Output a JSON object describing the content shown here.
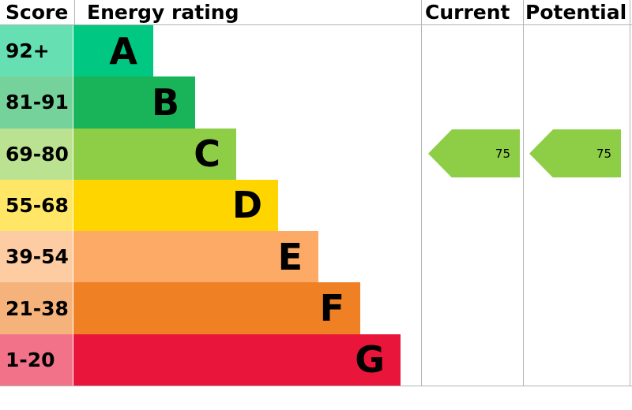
{
  "header": {
    "score": "Score",
    "energy_rating": "Energy rating",
    "current": "Current",
    "potential": "Potential"
  },
  "chart_data": {
    "type": "bar",
    "subtype": "epc-energy-efficiency-rating",
    "title": "Energy rating",
    "columns": [
      "Score",
      "Energy rating",
      "Current",
      "Potential"
    ],
    "bands": [
      {
        "letter": "A",
        "score_range": "92+",
        "bar_color": "#00c781",
        "score_cell_color": "#66e0b3"
      },
      {
        "letter": "B",
        "score_range": "81-91",
        "bar_color": "#19b459",
        "score_cell_color": "#75d29b"
      },
      {
        "letter": "C",
        "score_range": "69-80",
        "bar_color": "#8dce46",
        "score_cell_color": "#bbe290"
      },
      {
        "letter": "D",
        "score_range": "55-68",
        "bar_color": "#ffd500",
        "score_cell_color": "#ffe666"
      },
      {
        "letter": "E",
        "score_range": "39-54",
        "bar_color": "#fcaa65",
        "score_cell_color": "#fdcca3"
      },
      {
        "letter": "F",
        "score_range": "21-38",
        "bar_color": "#ef8023",
        "score_cell_color": "#f5b37b"
      },
      {
        "letter": "G",
        "score_range": "1-20",
        "bar_color": "#e9153b",
        "score_cell_color": "#f27389"
      }
    ],
    "current": {
      "value": "75",
      "band": "C",
      "arrow_color": "#8dce46"
    },
    "potential": {
      "value": "75",
      "band": "C",
      "arrow_color": "#8dce46"
    },
    "grid_color": "#b1b4b6",
    "text_color": "#000000",
    "legend_position": "none",
    "grid": "column-separators-only"
  }
}
